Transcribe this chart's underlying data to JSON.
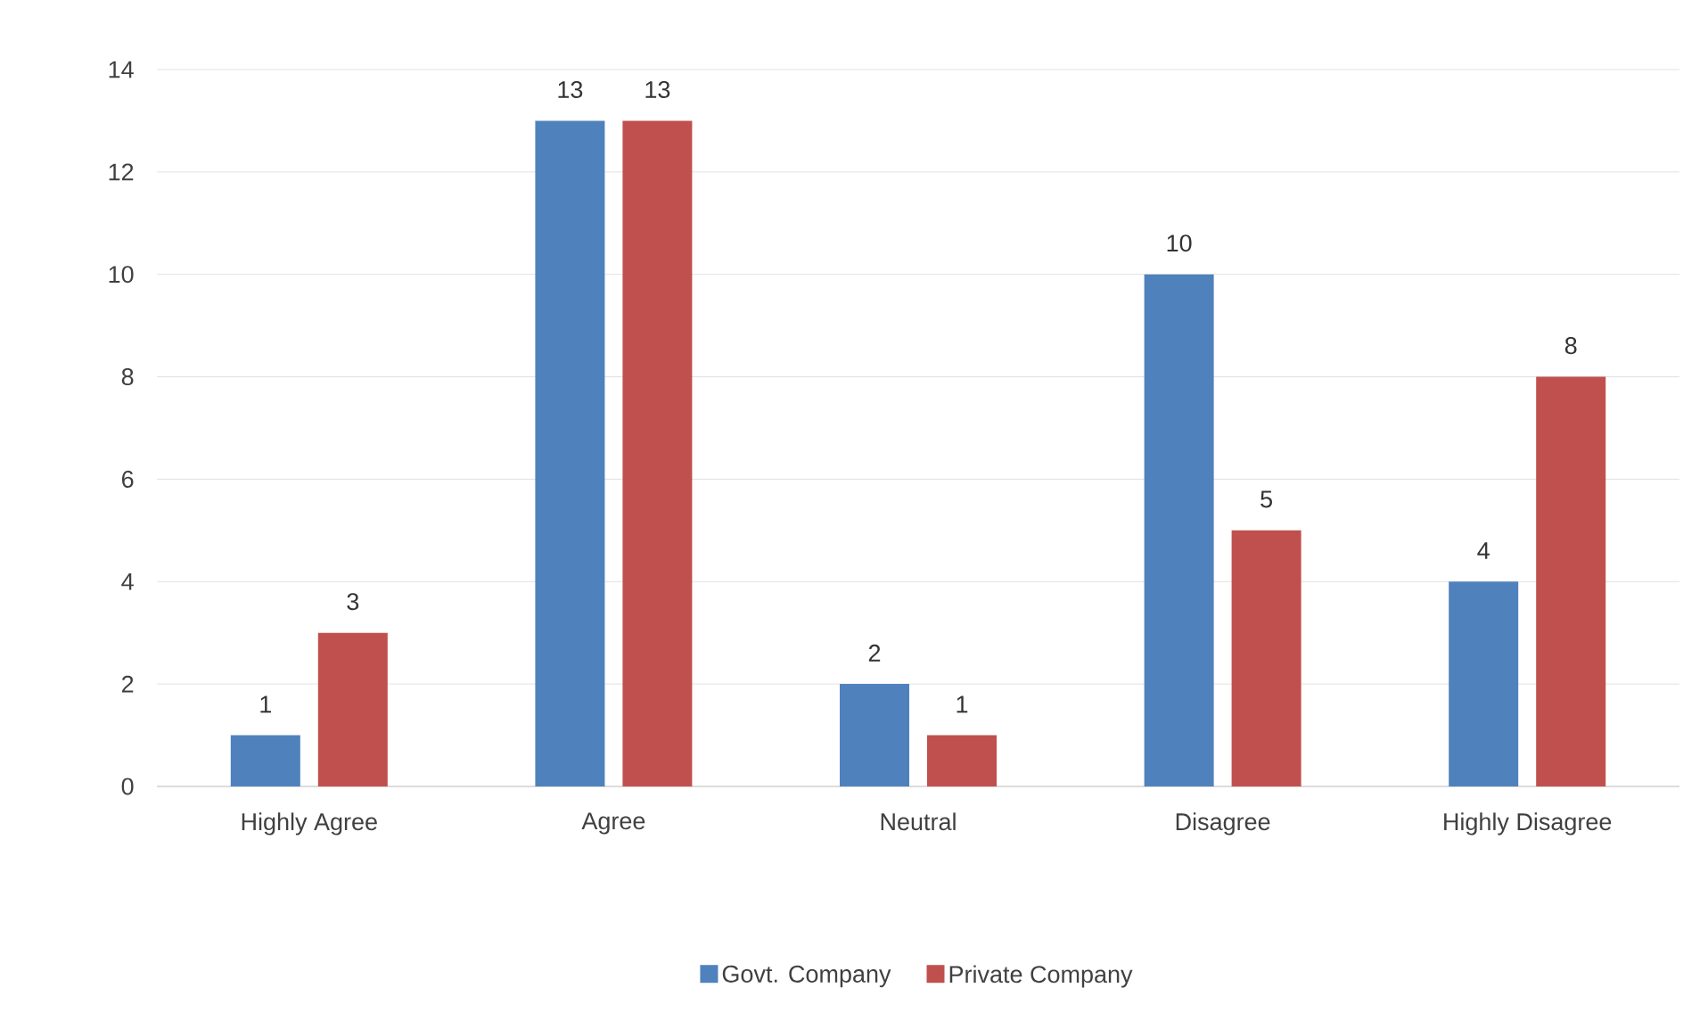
{
  "chart_data": {
    "type": "bar",
    "categories": [
      "Highly Agree",
      "Agree",
      "Neutral",
      "Disagree",
      "Highly Disagree"
    ],
    "series": [
      {
        "name": "Govt. Company",
        "color": "#4f81bd",
        "values": [
          1,
          13,
          2,
          10,
          4
        ]
      },
      {
        "name": "Private Company",
        "color": "#c0504d",
        "values": [
          3,
          13,
          1,
          5,
          8
        ]
      }
    ],
    "ylim": [
      0,
      14
    ],
    "yticks": [
      0,
      2,
      4,
      6,
      8,
      10,
      12,
      14
    ],
    "grid": "y",
    "legend": "bottom",
    "data_labels": true
  }
}
